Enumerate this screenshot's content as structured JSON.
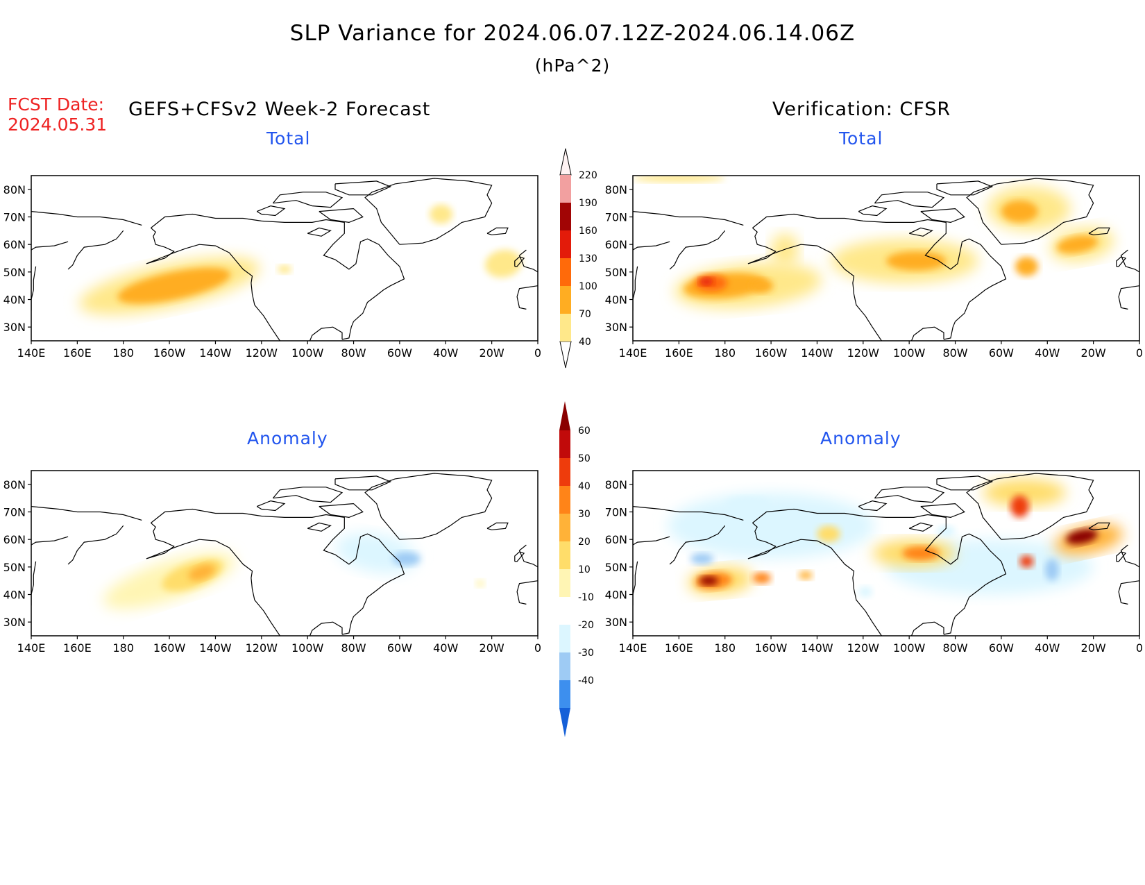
{
  "title": "SLP Variance for 2024.06.07.12Z-2024.06.14.06Z",
  "subtitle": "(hPa^2)",
  "fcst_label": "FCST Date:",
  "fcst_date": "2024.05.31",
  "forecast_header": "GEFS+CFSv2 Week-2 Forecast",
  "verification_header": "Verification: CFSR",
  "panels": {
    "forecast_total_title": "Total",
    "verification_total_title": "Total",
    "forecast_anomaly_title": "Anomaly",
    "verification_anomaly_title": "Anomaly"
  },
  "map_axes": {
    "lat_labels": [
      "80N",
      "70N",
      "60N",
      "50N",
      "40N",
      "30N"
    ],
    "lat_values": [
      80,
      70,
      60,
      50,
      40,
      30
    ],
    "lon_labels": [
      "140E",
      "160E",
      "180",
      "160W",
      "140W",
      "120W",
      "100W",
      "80W",
      "60W",
      "40W",
      "20W",
      "0"
    ],
    "lon_range": [
      140,
      360
    ],
    "lat_range": [
      25,
      85
    ]
  },
  "total_colorbar": {
    "levels": [
      40,
      70,
      100,
      130,
      160,
      190,
      220
    ],
    "labels": [
      "40",
      "70",
      "100",
      "130",
      "160",
      "190",
      "220"
    ],
    "colors": [
      "#ffe88a",
      "#ffad22",
      "#ff6a0a",
      "#e31b0a",
      "#a10505",
      "#f2a0a0",
      "#fde4e4"
    ]
  },
  "anomaly_colorbar": {
    "levels": [
      -40,
      -30,
      -20,
      -10,
      10,
      20,
      30,
      40,
      50,
      60
    ],
    "labels": [
      "-40",
      "-30",
      "-20",
      "-10",
      "10",
      "20",
      "30",
      "40",
      "50",
      "60"
    ],
    "colors": [
      "#1560d8",
      "#3d8fee",
      "#9ecbf4",
      "#dcf6ff",
      "#ffffff",
      "#fff5b4",
      "#ffdd6a",
      "#ffb238",
      "#ff8418",
      "#ee3c0c",
      "#c10a0a",
      "#8a0000"
    ]
  },
  "chart_data": [
    {
      "type": "heatmap",
      "name": "forecast-total",
      "features": [
        {
          "lon": 200,
          "lat": 45,
          "value": 75
        },
        {
          "lon": 318,
          "lat": 71,
          "value": 45
        },
        {
          "lon": 345,
          "lat": 53,
          "value": 45
        },
        {
          "lon": 250,
          "lat": 51,
          "value": 42
        }
      ]
    },
    {
      "type": "heatmap",
      "name": "verification-total",
      "features": [
        {
          "lon": 172,
          "lat": 46,
          "value": 130
        },
        {
          "lon": 197,
          "lat": 44,
          "value": 80
        },
        {
          "lon": 260,
          "lat": 55,
          "value": 90
        },
        {
          "lon": 308,
          "lat": 70,
          "value": 100
        },
        {
          "lon": 333,
          "lat": 60,
          "value": 100
        },
        {
          "lon": 310,
          "lat": 52,
          "value": 100
        },
        {
          "lon": 155,
          "lat": 84,
          "value": 45
        }
      ]
    },
    {
      "type": "heatmap",
      "name": "forecast-anomaly",
      "features": [
        {
          "lon": 214,
          "lat": 48,
          "value": 45
        },
        {
          "lon": 300,
          "lat": 53,
          "value": -20
        }
      ]
    },
    {
      "type": "heatmap",
      "name": "verification-anomaly",
      "features": [
        {
          "lon": 173,
          "lat": 45,
          "value": 60
        },
        {
          "lon": 265,
          "lat": 55,
          "value": 55
        },
        {
          "lon": 308,
          "lat": 74,
          "value": 60
        },
        {
          "lon": 335,
          "lat": 62,
          "value": 60
        },
        {
          "lon": 312,
          "lat": 53,
          "value": 50
        },
        {
          "lon": 170,
          "lat": 55,
          "value": -30
        },
        {
          "lon": 320,
          "lat": 48,
          "value": -30
        },
        {
          "lon": 190,
          "lat": 73,
          "value": -20
        },
        {
          "lon": 275,
          "lat": 64,
          "value": -20
        },
        {
          "lon": 240,
          "lat": 40,
          "value": -20
        }
      ]
    }
  ]
}
